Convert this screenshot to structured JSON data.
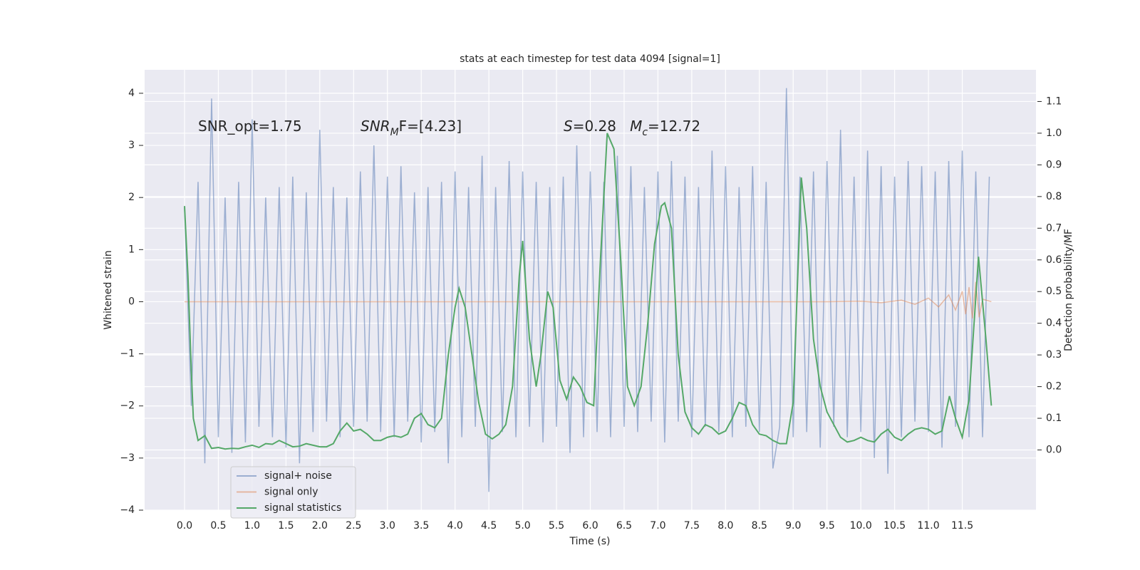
{
  "chart_data": {
    "type": "line",
    "title": "stats at each timestep for test data 4094 [signal=1]",
    "xlabel": "Time (s)",
    "ylabel": "Whitened strain",
    "y2label": "Detection probability/MF",
    "annotations": [
      [
        "SNR_opt=1.75"
      ],
      [
        "SNR",
        "M",
        "F=[4.23]"
      ],
      [
        "S",
        "=0.28   ",
        "M",
        "c",
        "=12.72"
      ]
    ],
    "xlim": [
      -0.59,
      12.59
    ],
    "xticks": [
      {
        "value": 0,
        "label": "0.0"
      },
      0.5,
      {
        "value": 1,
        "label": "1.0"
      },
      1.5,
      {
        "value": 2,
        "label": "2.0"
      },
      2.5,
      {
        "value": 3,
        "label": "3.0"
      },
      3.5,
      {
        "value": 4,
        "label": "4.0"
      },
      4.5,
      {
        "value": 5,
        "label": "5.0"
      },
      5.5,
      {
        "value": 6,
        "label": "6.0"
      },
      6.5,
      {
        "value": 7,
        "label": "7.0"
      },
      7.5,
      {
        "value": 8,
        "label": "8.0"
      },
      8.5,
      {
        "value": 9,
        "label": "9.0"
      },
      9.5,
      {
        "value": 10,
        "label": "10.0"
      },
      10.5,
      {
        "value": 11,
        "label": "11.0"
      },
      11.5
    ],
    "ylim": [
      -4.0,
      4.45
    ],
    "yticks": [
      {
        "value": -4,
        "label": "−4"
      },
      {
        "value": -3,
        "label": "−3"
      },
      {
        "value": -2,
        "label": "−2"
      },
      {
        "value": -1,
        "label": "−1"
      },
      0,
      1,
      2,
      3,
      4
    ],
    "y2lim": [
      -0.19,
      1.2
    ],
    "y2ticks": [
      {
        "value": 0,
        "label": "0.0"
      },
      0.1,
      0.2,
      0.3,
      0.4,
      0.5,
      0.6,
      0.7,
      0.8,
      0.9,
      {
        "value": 1,
        "label": "1.0"
      },
      1.1
    ],
    "grid": true,
    "legend": "lower left",
    "series": [
      {
        "name": "signal+ noise",
        "color": "#4c72b0",
        "alpha": 0.5,
        "x": [
          0.0,
          0.1,
          0.2,
          0.3,
          0.4,
          0.5,
          0.6,
          0.7,
          0.8,
          0.9,
          1.0,
          1.1,
          1.2,
          1.3,
          1.4,
          1.5,
          1.6,
          1.7,
          1.8,
          1.9,
          2.0,
          2.1,
          2.2,
          2.3,
          2.4,
          2.5,
          2.6,
          2.7,
          2.8,
          2.9,
          3.0,
          3.1,
          3.2,
          3.3,
          3.4,
          3.5,
          3.6,
          3.7,
          3.8,
          3.9,
          4.0,
          4.1,
          4.2,
          4.3,
          4.4,
          4.5,
          4.6,
          4.7,
          4.8,
          4.9,
          5.0,
          5.1,
          5.2,
          5.3,
          5.4,
          5.5,
          5.6,
          5.7,
          5.8,
          5.9,
          6.0,
          6.1,
          6.2,
          6.3,
          6.4,
          6.5,
          6.6,
          6.7,
          6.8,
          6.9,
          7.0,
          7.1,
          7.2,
          7.3,
          7.4,
          7.5,
          7.6,
          7.7,
          7.8,
          7.9,
          8.0,
          8.1,
          8.2,
          8.3,
          8.4,
          8.5,
          8.6,
          8.7,
          8.8,
          8.9,
          9.0,
          9.1,
          9.2,
          9.3,
          9.4,
          9.5,
          9.6,
          9.7,
          9.8,
          9.9,
          10.0,
          10.1,
          10.2,
          10.3,
          10.4,
          10.5,
          10.6,
          10.7,
          10.8,
          10.9,
          11.0,
          11.1,
          11.2,
          11.3,
          11.4,
          11.5,
          11.6,
          11.7,
          11.8,
          11.9
        ],
        "values": [
          1.8,
          -2.0,
          2.3,
          -3.1,
          3.9,
          -2.6,
          2.0,
          -2.9,
          2.3,
          -2.7,
          3.5,
          -2.4,
          2.0,
          -2.6,
          2.2,
          -2.8,
          2.4,
          -3.1,
          2.1,
          -2.5,
          3.3,
          -2.3,
          2.2,
          -2.6,
          2.0,
          -2.4,
          2.5,
          -2.3,
          3.0,
          -2.5,
          2.4,
          -2.6,
          2.6,
          -2.3,
          2.1,
          -2.7,
          2.2,
          -2.5,
          2.3,
          -3.1,
          2.5,
          -2.6,
          2.2,
          -2.4,
          2.8,
          -3.65,
          2.2,
          -2.5,
          2.7,
          -2.6,
          2.5,
          -2.4,
          2.3,
          -2.7,
          2.2,
          -2.4,
          2.4,
          -2.9,
          3.0,
          -2.6,
          2.5,
          -2.5,
          2.3,
          -2.6,
          2.8,
          -2.4,
          2.6,
          -2.5,
          2.2,
          -2.3,
          2.5,
          -2.7,
          2.7,
          -2.3,
          2.4,
          -2.6,
          2.2,
          -2.4,
          2.9,
          -2.5,
          2.6,
          -2.6,
          2.2,
          -2.4,
          2.6,
          -2.5,
          2.3,
          -3.2,
          -2.4,
          4.1,
          -2.6,
          2.4,
          -2.5,
          2.5,
          -2.8,
          2.7,
          -2.4,
          3.3,
          -2.6,
          2.4,
          -2.5,
          2.9,
          -3.0,
          2.6,
          -3.3,
          2.4,
          -2.6,
          2.7,
          -2.3,
          2.6,
          -2.5,
          2.5,
          -2.8,
          2.7,
          -2.4,
          2.9,
          -2.6,
          2.5,
          -2.6,
          2.4
        ]
      },
      {
        "name": "signal only",
        "color": "#dd8452",
        "alpha": 0.5,
        "x": [
          0,
          2,
          4,
          6,
          8,
          9.5,
          10.0,
          10.3,
          10.6,
          10.8,
          11.0,
          11.15,
          11.3,
          11.4,
          11.5,
          11.55,
          11.6,
          11.65,
          11.7,
          11.75,
          11.8,
          11.93
        ],
        "values": [
          0,
          0,
          0,
          0,
          0,
          0,
          0.01,
          -0.02,
          0.03,
          -0.05,
          0.07,
          -0.1,
          0.13,
          -0.16,
          0.2,
          -0.24,
          0.28,
          -0.32,
          0.38,
          -0.3,
          0.05,
          0
        ]
      },
      {
        "name": "signal statistics",
        "color": "#55a868",
        "axis": "y2",
        "x": [
          0.0,
          0.05,
          0.1,
          0.13,
          0.2,
          0.3,
          0.4,
          0.5,
          0.6,
          0.7,
          0.8,
          0.9,
          1.0,
          1.1,
          1.2,
          1.3,
          1.4,
          1.5,
          1.6,
          1.7,
          1.8,
          1.9,
          2.0,
          2.1,
          2.2,
          2.3,
          2.4,
          2.5,
          2.6,
          2.7,
          2.8,
          2.9,
          3.0,
          3.1,
          3.2,
          3.3,
          3.4,
          3.5,
          3.6,
          3.7,
          3.8,
          3.9,
          4.0,
          4.06,
          4.15,
          4.25,
          4.35,
          4.45,
          4.55,
          4.65,
          4.75,
          4.85,
          4.95,
          5.0,
          5.1,
          5.2,
          5.27,
          5.37,
          5.45,
          5.55,
          5.65,
          5.75,
          5.85,
          5.95,
          6.05,
          6.15,
          6.25,
          6.35,
          6.45,
          6.55,
          6.65,
          6.75,
          6.85,
          6.95,
          7.05,
          7.1,
          7.2,
          7.3,
          7.4,
          7.5,
          7.6,
          7.7,
          7.8,
          7.9,
          8.0,
          8.1,
          8.2,
          8.3,
          8.4,
          8.5,
          8.6,
          8.7,
          8.8,
          8.9,
          9.0,
          9.12,
          9.2,
          9.3,
          9.4,
          9.5,
          9.6,
          9.7,
          9.8,
          9.9,
          10.0,
          10.1,
          10.2,
          10.3,
          10.4,
          10.5,
          10.6,
          10.7,
          10.8,
          10.9,
          11.0,
          11.1,
          11.2,
          11.31,
          11.4,
          11.5,
          11.6,
          11.74,
          11.85,
          11.93
        ],
        "values": [
          0.77,
          0.55,
          0.25,
          0.1,
          0.03,
          0.045,
          0.005,
          0.008,
          0.003,
          0.005,
          0.004,
          0.01,
          0.015,
          0.008,
          0.02,
          0.018,
          0.03,
          0.02,
          0.01,
          0.012,
          0.02,
          0.015,
          0.01,
          0.01,
          0.02,
          0.06,
          0.085,
          0.06,
          0.065,
          0.05,
          0.03,
          0.03,
          0.04,
          0.045,
          0.04,
          0.05,
          0.1,
          0.115,
          0.08,
          0.07,
          0.1,
          0.3,
          0.45,
          0.51,
          0.45,
          0.3,
          0.15,
          0.05,
          0.035,
          0.05,
          0.08,
          0.2,
          0.55,
          0.66,
          0.35,
          0.2,
          0.3,
          0.5,
          0.45,
          0.22,
          0.16,
          0.23,
          0.2,
          0.15,
          0.14,
          0.6,
          1.0,
          0.95,
          0.6,
          0.2,
          0.14,
          0.2,
          0.4,
          0.65,
          0.77,
          0.78,
          0.7,
          0.3,
          0.12,
          0.07,
          0.05,
          0.08,
          0.07,
          0.05,
          0.06,
          0.1,
          0.15,
          0.14,
          0.08,
          0.05,
          0.045,
          0.03,
          0.02,
          0.02,
          0.15,
          0.86,
          0.7,
          0.35,
          0.2,
          0.12,
          0.08,
          0.04,
          0.025,
          0.03,
          0.04,
          0.03,
          0.025,
          0.05,
          0.065,
          0.04,
          0.03,
          0.05,
          0.065,
          0.07,
          0.065,
          0.05,
          0.06,
          0.17,
          0.1,
          0.04,
          0.16,
          0.61,
          0.35,
          0.14
        ]
      }
    ]
  }
}
